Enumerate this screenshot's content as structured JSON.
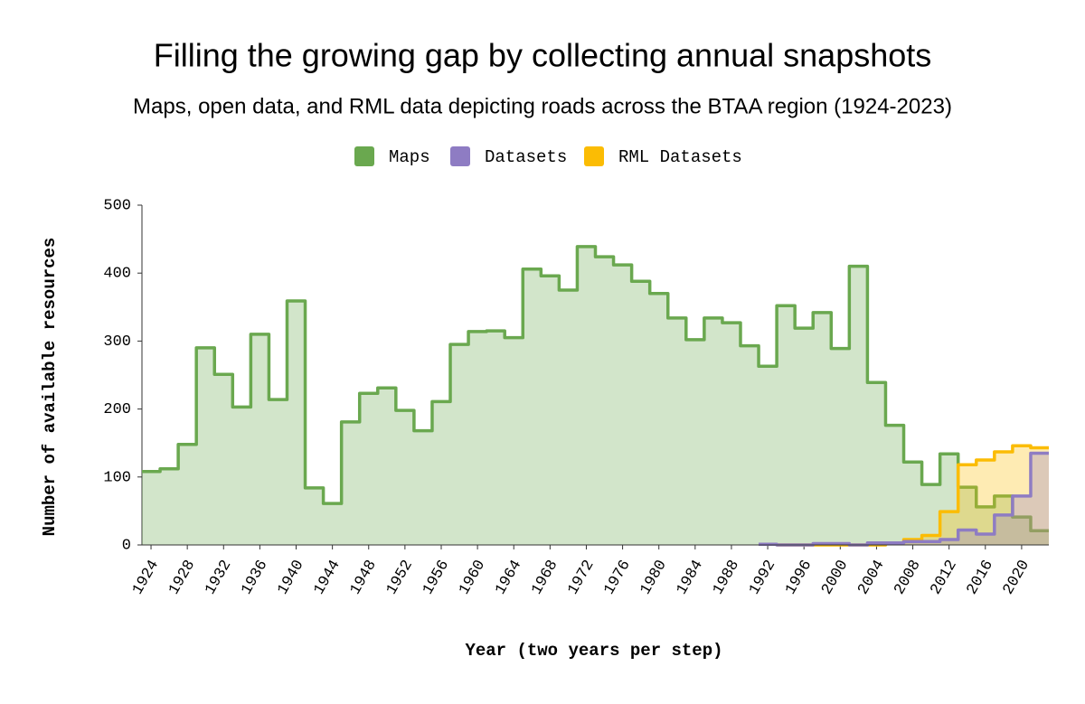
{
  "chart_data": {
    "type": "step-area",
    "title": "Filling the growing gap by collecting annual snapshots",
    "subtitle": "Maps, open data, and RML data depicting roads across the BTAA region (1924-2023)",
    "x_label": "Year (two years per step)",
    "y_label": "Number of available resources",
    "x": [
      1924,
      1926,
      1928,
      1930,
      1932,
      1934,
      1936,
      1938,
      1940,
      1942,
      1944,
      1946,
      1948,
      1950,
      1952,
      1954,
      1956,
      1958,
      1960,
      1962,
      1964,
      1966,
      1968,
      1970,
      1972,
      1974,
      1976,
      1978,
      1980,
      1982,
      1984,
      1986,
      1988,
      1990,
      1992,
      1994,
      1996,
      1998,
      2000,
      2002,
      2004,
      2006,
      2008,
      2010,
      2012,
      2014,
      2016,
      2018,
      2020,
      2022
    ],
    "series": [
      {
        "name": "Maps",
        "color": "#6aa84f",
        "values": [
          108,
          112,
          148,
          290,
          251,
          203,
          310,
          214,
          359,
          84,
          61,
          181,
          223,
          231,
          198,
          168,
          211,
          295,
          314,
          315,
          305,
          406,
          396,
          375,
          439,
          424,
          412,
          388,
          370,
          334,
          302,
          334,
          327,
          293,
          263,
          352,
          319,
          342,
          289,
          410,
          239,
          176,
          122,
          89,
          134,
          85,
          56,
          72,
          41,
          21
        ]
      },
      {
        "name": "Datasets",
        "color": "#8e7cc3",
        "values": [
          null,
          null,
          null,
          null,
          null,
          null,
          null,
          null,
          null,
          null,
          null,
          null,
          null,
          null,
          null,
          null,
          null,
          null,
          null,
          null,
          null,
          null,
          null,
          null,
          null,
          null,
          null,
          null,
          null,
          null,
          null,
          null,
          null,
          null,
          1,
          0,
          0,
          2,
          2,
          0,
          3,
          3,
          5,
          5,
          8,
          22,
          16,
          44,
          72,
          135
        ]
      },
      {
        "name": "RML Datasets",
        "color": "#fbbc04",
        "values": [
          null,
          null,
          null,
          null,
          null,
          null,
          null,
          null,
          null,
          null,
          null,
          null,
          null,
          null,
          null,
          null,
          null,
          null,
          null,
          null,
          null,
          null,
          null,
          null,
          null,
          null,
          null,
          null,
          null,
          null,
          null,
          null,
          null,
          null,
          null,
          0,
          0,
          0,
          0,
          0,
          0,
          3,
          8,
          14,
          49,
          118,
          125,
          137,
          146,
          143
        ]
      }
    ],
    "xlim": [
      1924,
      2024
    ],
    "xticks": [
      1924,
      1928,
      1932,
      1936,
      1940,
      1944,
      1948,
      1952,
      1956,
      1960,
      1964,
      1968,
      1972,
      1976,
      1980,
      1984,
      1988,
      1992,
      1996,
      2000,
      2004,
      2008,
      2012,
      2016,
      2020
    ],
    "ylim": [
      0,
      500
    ],
    "yticks": [
      0,
      100,
      200,
      300,
      400,
      500
    ],
    "step": 2,
    "legend": "top"
  }
}
